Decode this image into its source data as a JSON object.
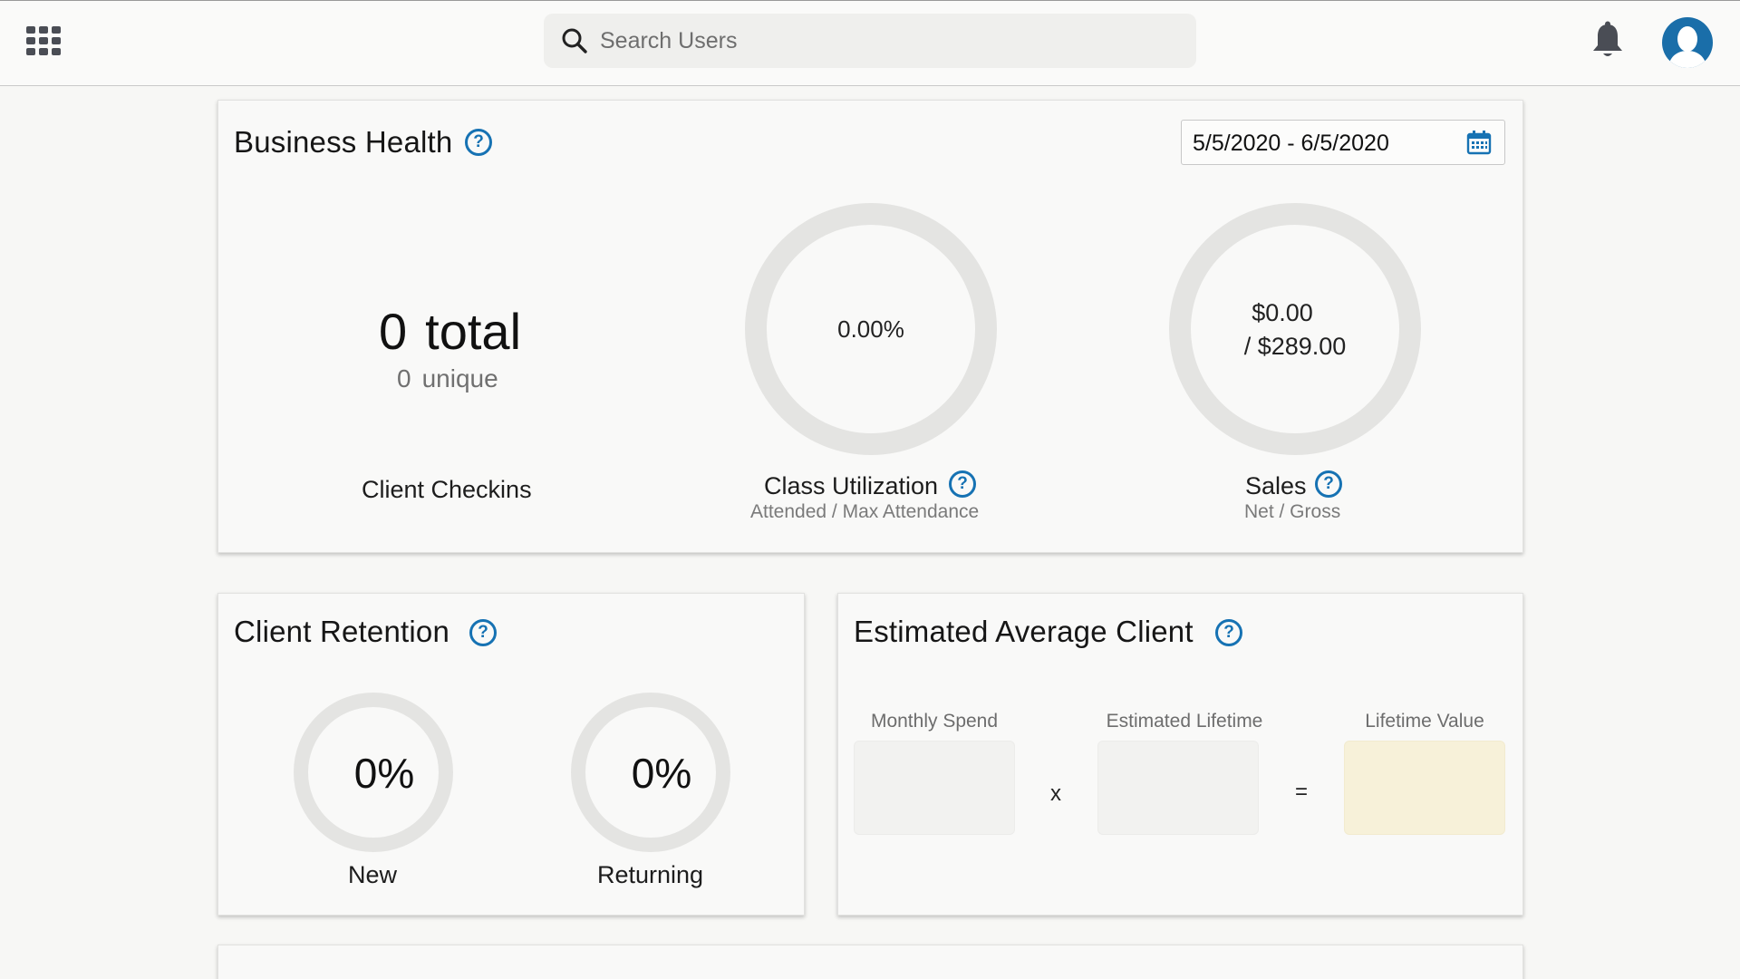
{
  "topbar": {
    "search_placeholder": "Search Users"
  },
  "icons": {
    "apps": "apps-grid-icon",
    "search": "search-icon",
    "notifications": "bell-icon",
    "profile": "user-avatar-icon",
    "calendar": "calendar-icon",
    "help": "help-circle-icon"
  },
  "colors": {
    "accent": "#1672b3",
    "avatar": "#1a6ea9",
    "lifetime_value_box": "#f7f1d9"
  },
  "business_health": {
    "title": "Business Health",
    "help_glyph": "?",
    "date_range": "5/5/2020 - 6/5/2020",
    "checkins": {
      "total_value": "0",
      "total_label": "total",
      "unique_value": "0",
      "unique_label": "unique",
      "label": "Client Checkins"
    },
    "class_utilization": {
      "value": "0.00%",
      "label": "Class Utilization",
      "sublabel": "Attended / Max Attendance"
    },
    "sales": {
      "net": "$0.00",
      "gross": "/ $289.00",
      "label": "Sales",
      "sublabel": "Net / Gross"
    }
  },
  "client_retention": {
    "title": "Client Retention",
    "new_value": "0%",
    "new_label": "New",
    "returning_value": "0%",
    "returning_label": "Returning"
  },
  "estimated_average_client": {
    "title": "Estimated Average Client",
    "monthly_spend_label": "Monthly Spend",
    "estimated_lifetime_label": "Estimated Lifetime",
    "lifetime_value_label": "Lifetime Value",
    "multiply_op": "x",
    "equals_op": "="
  }
}
